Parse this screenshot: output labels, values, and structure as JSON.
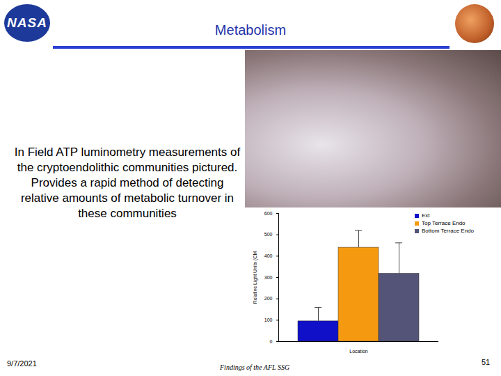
{
  "slide": {
    "logo": "NASA",
    "title": "Metabolism",
    "body": "In Field ATP luminometry measurements of the cryptoendolithic communities pictured. Provides a rapid method of detecting relative amounts of metabolic turnover in these communities",
    "date": "9/7/2021",
    "footer": "Findings of the AFL SSG",
    "page": 51
  },
  "chart_data": {
    "type": "bar",
    "categories": [
      "Ext",
      "Top Terrace Endo",
      "Bottom Terrace Endo"
    ],
    "values": [
      95,
      440,
      318
    ],
    "errors": [
      65,
      80,
      144
    ],
    "colors": [
      "#1010c8",
      "#f59a10",
      "#545478"
    ],
    "x_label": "Location",
    "y_label": "Relative Light Units (CM",
    "ylim": [
      0,
      600
    ],
    "yticks": [
      0,
      100,
      200,
      300,
      400,
      500,
      600
    ],
    "grid": false,
    "legend": "right",
    "tick_labels": "y"
  }
}
